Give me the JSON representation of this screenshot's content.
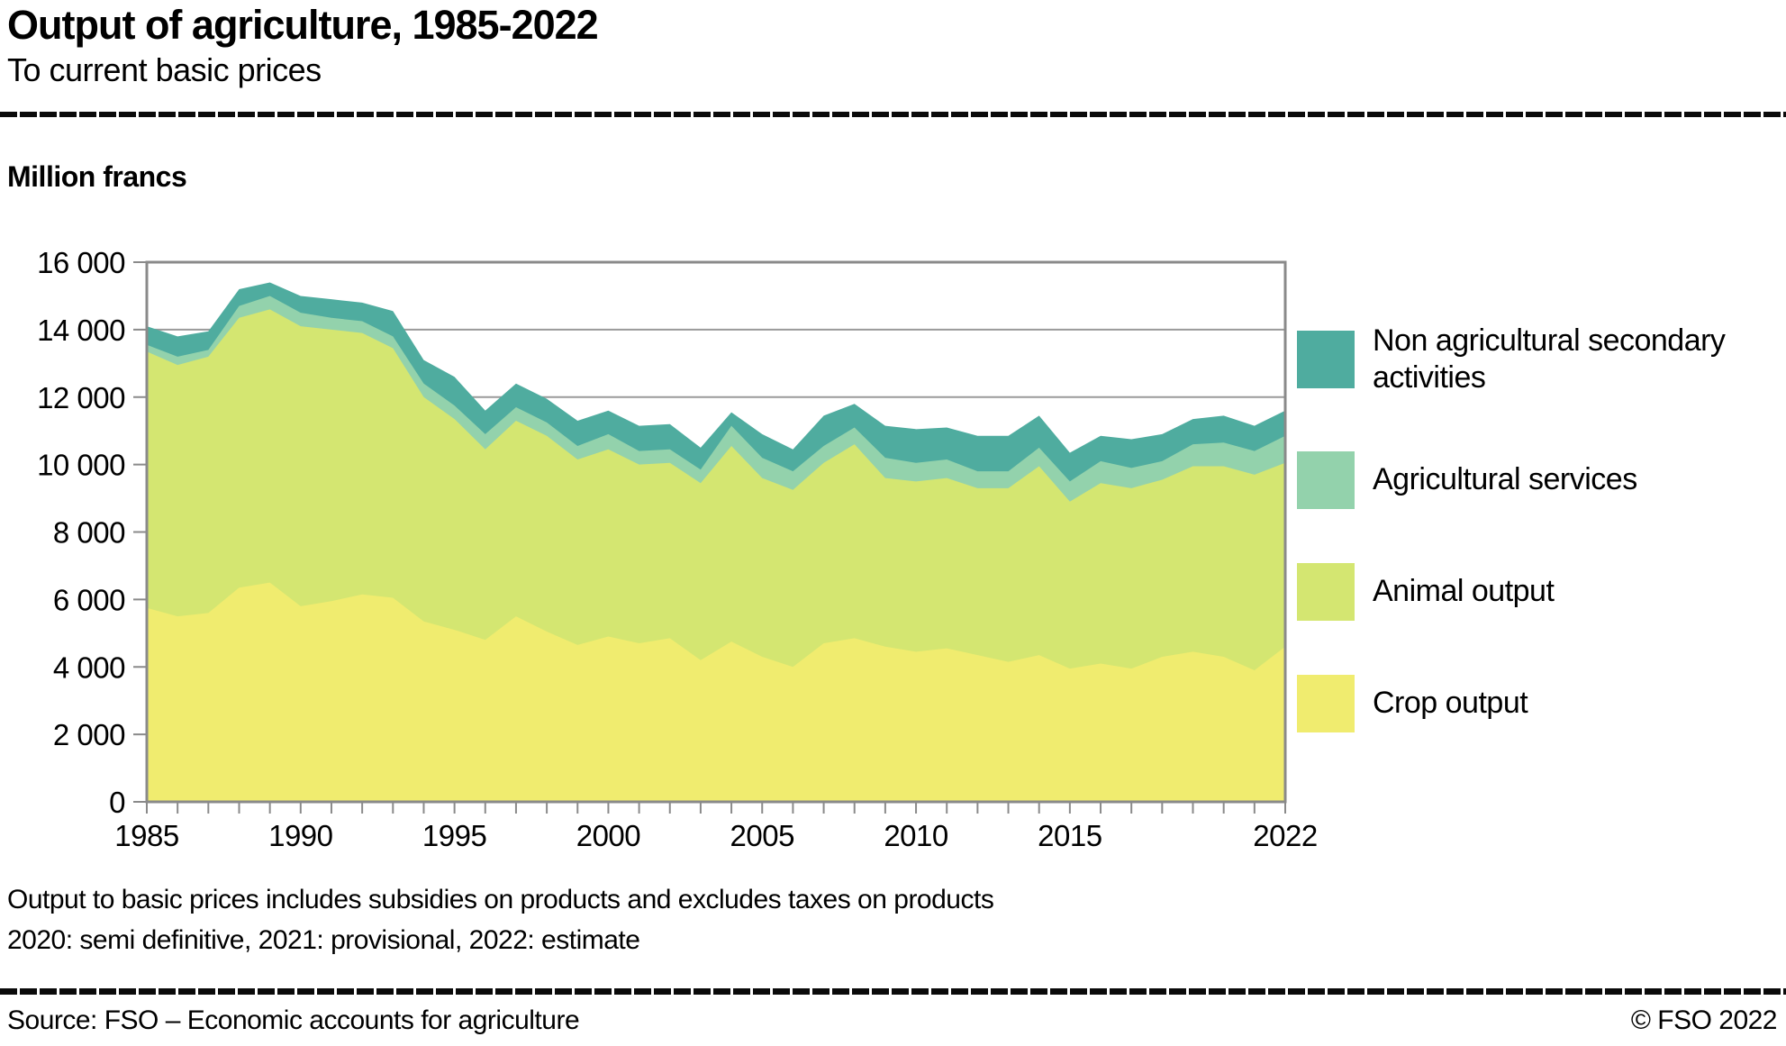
{
  "header": {
    "title": "Output of agriculture, 1985-2022",
    "subtitle": "To current basic prices"
  },
  "chart_data": {
    "type": "area",
    "stacked": true,
    "title": "Output of agriculture, 1985-2022",
    "subtitle": "To current basic prices",
    "ylabel": "Million francs",
    "xlabel": "",
    "grid": true,
    "legend_position": "right",
    "ylim": [
      0,
      16000
    ],
    "frame_color": "#8a8a8a",
    "grid_color": "#9a9a9a",
    "x": [
      1985,
      1986,
      1987,
      1988,
      1989,
      1990,
      1991,
      1992,
      1993,
      1994,
      1995,
      1996,
      1997,
      1998,
      1999,
      2000,
      2001,
      2002,
      2003,
      2004,
      2005,
      2006,
      2007,
      2008,
      2009,
      2010,
      2011,
      2012,
      2013,
      2014,
      2015,
      2016,
      2017,
      2018,
      2019,
      2020,
      2021,
      2022
    ],
    "series": [
      {
        "name": "Crop output",
        "color": "#F0EC6F",
        "values": [
          5750,
          5500,
          5600,
          6350,
          6500,
          5800,
          5950,
          6150,
          6050,
          5350,
          5100,
          4800,
          5500,
          5050,
          4650,
          4900,
          4700,
          4850,
          4200,
          4750,
          4300,
          4000,
          4700,
          4850,
          4600,
          4450,
          4550,
          4350,
          4150,
          4350,
          3950,
          4100,
          3950,
          4300,
          4450,
          4300,
          3900,
          4600
        ]
      },
      {
        "name": "Animal output",
        "color": "#D4E671",
        "values": [
          7600,
          7450,
          7600,
          8000,
          8100,
          8300,
          8050,
          7750,
          7400,
          6650,
          6250,
          5650,
          5800,
          5800,
          5500,
          5550,
          5300,
          5200,
          5250,
          5800,
          5300,
          5250,
          5350,
          5750,
          5000,
          5050,
          5050,
          4950,
          5150,
          5600,
          4950,
          5350,
          5350,
          5250,
          5500,
          5650,
          5800,
          5450
        ]
      },
      {
        "name": "Agricultural services",
        "color": "#93D2AC",
        "values": [
          200,
          250,
          200,
          350,
          400,
          400,
          350,
          350,
          350,
          400,
          400,
          450,
          400,
          400,
          400,
          450,
          400,
          400,
          400,
          600,
          600,
          550,
          500,
          500,
          600,
          550,
          550,
          500,
          500,
          550,
          600,
          650,
          600,
          550,
          650,
          700,
          700,
          800
        ]
      },
      {
        "name": "Non agricultural secondary activities",
        "color": "#4FAC9F",
        "values": [
          550,
          600,
          550,
          500,
          400,
          500,
          550,
          550,
          750,
          700,
          850,
          700,
          700,
          700,
          750,
          700,
          750,
          750,
          650,
          400,
          700,
          650,
          900,
          700,
          950,
          1000,
          950,
          1050,
          1050,
          950,
          850,
          750,
          850,
          800,
          750,
          800,
          750,
          750
        ]
      }
    ],
    "y_ticks": [
      {
        "value": 16000,
        "label": "16 000"
      },
      {
        "value": 14000,
        "label": "14 000"
      },
      {
        "value": 12000,
        "label": "12 000"
      },
      {
        "value": 10000,
        "label": "10 000"
      },
      {
        "value": 8000,
        "label": "8 000"
      },
      {
        "value": 6000,
        "label": "6 000"
      },
      {
        "value": 4000,
        "label": "4 000"
      },
      {
        "value": 2000,
        "label": "2 000"
      },
      {
        "value": 0,
        "label": "0"
      }
    ],
    "x_tick_labels": [
      {
        "year": 1985,
        "label": "1985"
      },
      {
        "year": 1990,
        "label": "1990"
      },
      {
        "year": 1995,
        "label": "1995"
      },
      {
        "year": 2000,
        "label": "2000"
      },
      {
        "year": 2005,
        "label": "2005"
      },
      {
        "year": 2010,
        "label": "2010"
      },
      {
        "year": 2015,
        "label": "2015"
      },
      {
        "year": 2022,
        "label": "2022"
      }
    ]
  },
  "unit_label": "Million francs",
  "legend": {
    "items": [
      {
        "label": "Non agricultural secondary activities",
        "color": "#4FAC9F"
      },
      {
        "label": "Agricultural services",
        "color": "#93D2AC"
      },
      {
        "label": "Animal output",
        "color": "#D4E671"
      },
      {
        "label": "Crop output",
        "color": "#F0EC6F"
      }
    ]
  },
  "footnotes": {
    "line1": "Output to basic prices includes subsidies on products and excludes taxes on products",
    "line2": "2020: semi definitive, 2021: provisional, 2022: estimate"
  },
  "footer": {
    "source": "Source: FSO – Economic accounts for agriculture",
    "copyright": "© FSO 2022"
  }
}
